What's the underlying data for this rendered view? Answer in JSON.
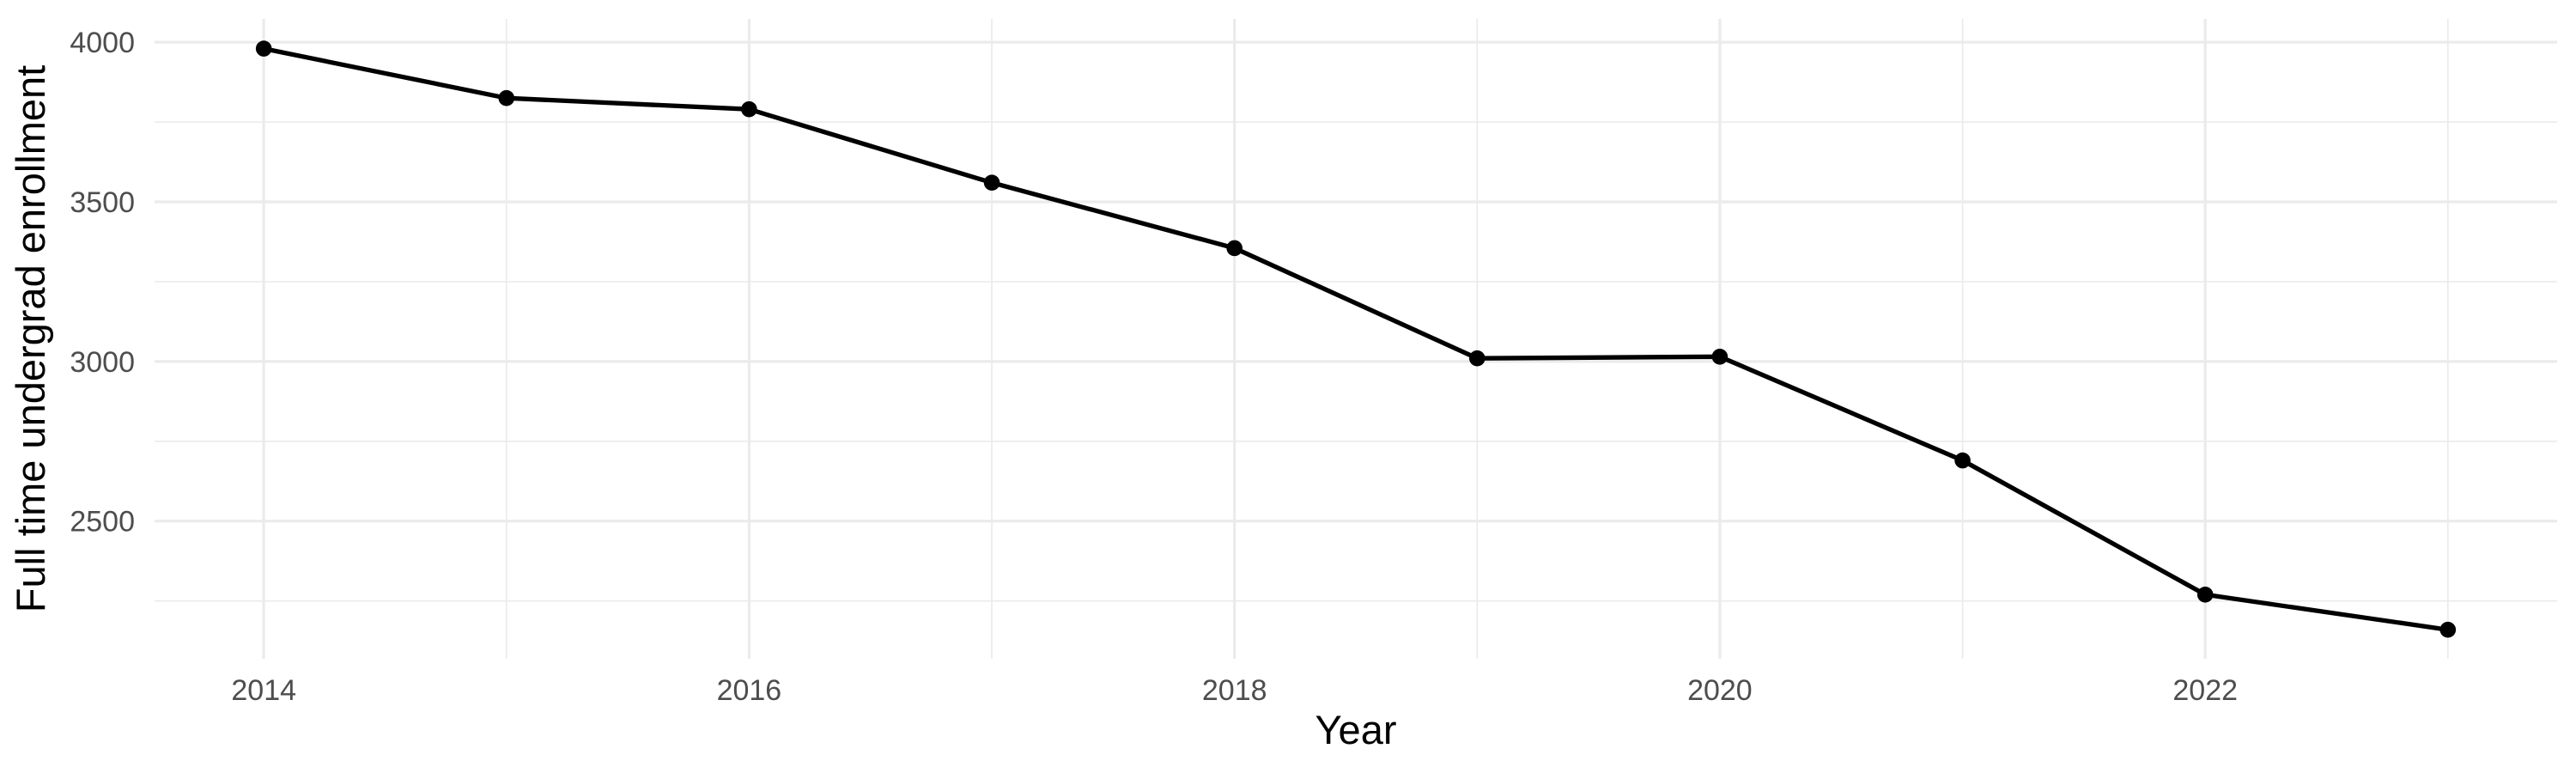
{
  "chart_data": {
    "type": "line",
    "title": "",
    "xlabel": "Year",
    "ylabel": "Full time undergrad enrollment",
    "series": [
      {
        "name": "Full time undergrad enrollment",
        "x": [
          2014,
          2015,
          2016,
          2017,
          2018,
          2019,
          2020,
          2021,
          2022,
          2023
        ],
        "values": [
          3980,
          3825,
          3790,
          3560,
          3355,
          3010,
          3015,
          2690,
          2270,
          2160
        ]
      }
    ],
    "xlim": [
      2013.55,
      2023.45
    ],
    "ylim": [
      2069,
      4073
    ],
    "x_major_ticks": [
      2014,
      2016,
      2018,
      2020,
      2022
    ],
    "x_minor_gridlines": [
      2015,
      2017,
      2019,
      2021,
      2023
    ],
    "y_major_ticks": [
      4000,
      3500,
      3000,
      2500
    ],
    "y_minor_gridlines": [
      3750,
      3250,
      2750,
      2250
    ],
    "grid": true,
    "legend_position": "none",
    "style": {
      "line_color": "#000000",
      "point_color": "#000000",
      "gridline_color": "#EBEBEB",
      "tick_label_color": "#4D4D4D",
      "axis_title_color": "#000000",
      "background_color": "#FFFFFF"
    }
  }
}
